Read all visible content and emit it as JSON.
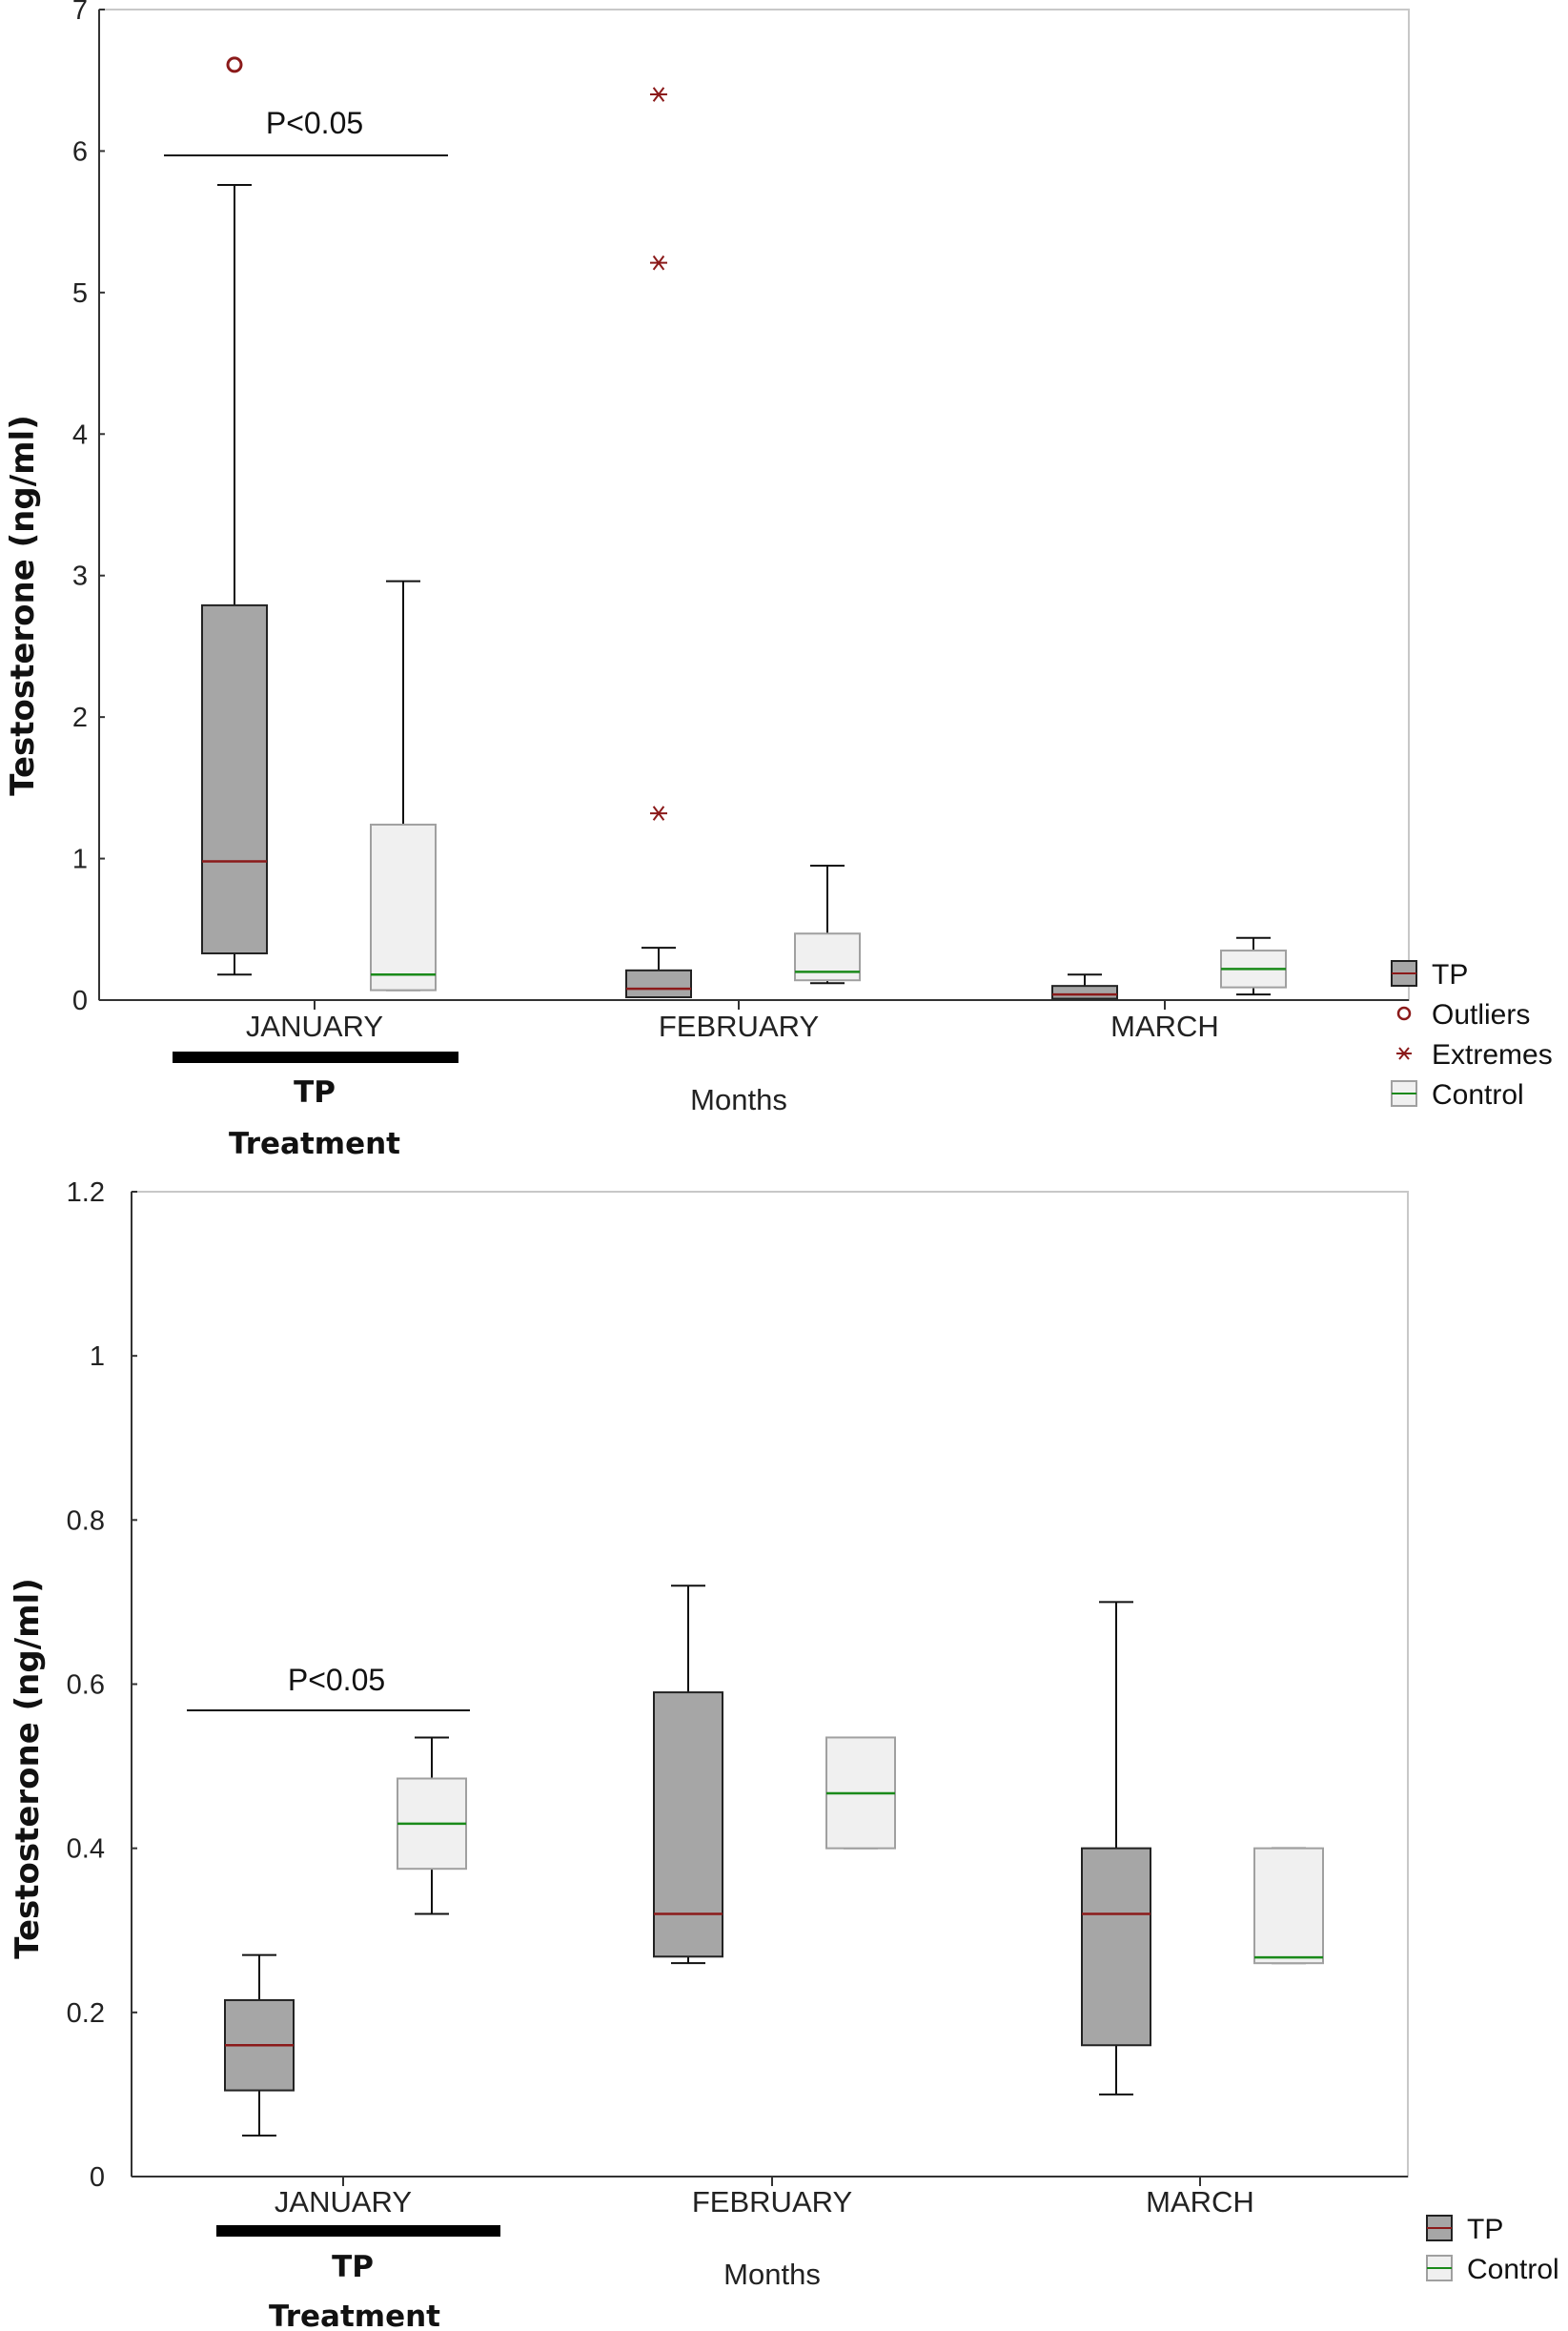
{
  "colors": {
    "tp_fill": "#a6a6a6",
    "control_fill": "#f0f0f0",
    "control_stroke": "#a0a0a0",
    "tp_median": "#8b1a1a",
    "control_median": "#1a8a1a",
    "outlier": "#8b1a1a"
  },
  "legend": {
    "tp": "TP",
    "outliers": "Outliers",
    "extremes": "Extremes",
    "control": "Control"
  },
  "chart_data": [
    {
      "type": "box",
      "ylabel": "Testosterone (ng/ml)",
      "xlabel": "Months",
      "ylim": [
        0,
        7
      ],
      "yticks": [
        "0",
        "1",
        "2",
        "3",
        "4",
        "5",
        "6",
        "7"
      ],
      "categories": [
        "JANUARY",
        "FEBRUARY",
        "MARCH"
      ],
      "treatment_label": "TP",
      "treatment_sublabel": "Treatment",
      "significance": "P<0.05",
      "series": [
        {
          "name": "TP",
          "boxes": [
            {
              "min": 0.18,
              "q1": 0.33,
              "median": 0.98,
              "q3": 2.79,
              "max": 5.76
            },
            {
              "min": 0.02,
              "q1": 0.02,
              "median": 0.08,
              "q3": 0.21,
              "max": 0.37
            },
            {
              "min": 0.01,
              "q1": 0.01,
              "median": 0.04,
              "q3": 0.1,
              "max": 0.18
            }
          ],
          "outliers": [
            [
              0,
              6.61
            ]
          ],
          "extremes": [
            [
              1,
              6.4
            ],
            [
              1,
              5.21
            ],
            [
              1,
              1.32
            ]
          ]
        },
        {
          "name": "Control",
          "boxes": [
            {
              "min": 0.07,
              "q1": 0.07,
              "median": 0.18,
              "q3": 1.24,
              "max": 2.96
            },
            {
              "min": 0.12,
              "q1": 0.14,
              "median": 0.2,
              "q3": 0.47,
              "max": 0.95
            },
            {
              "min": 0.04,
              "q1": 0.09,
              "median": 0.22,
              "q3": 0.35,
              "max": 0.44
            }
          ],
          "outliers": [],
          "extremes": []
        }
      ]
    },
    {
      "type": "box",
      "ylabel": "Testosterone (ng/ml)",
      "xlabel": "Months",
      "ylim": [
        0,
        1.2
      ],
      "yticks": [
        "0",
        "0.2",
        "0.4",
        "0.6",
        "0.8",
        "1",
        "1.2"
      ],
      "categories": [
        "JANUARY",
        "FEBRUARY",
        "MARCH"
      ],
      "treatment_label": "TP",
      "treatment_sublabel": "Treatment",
      "significance": "P<0.05",
      "series": [
        {
          "name": "TP",
          "boxes": [
            {
              "min": 0.05,
              "q1": 0.105,
              "median": 0.16,
              "q3": 0.215,
              "max": 0.27
            },
            {
              "min": 0.26,
              "q1": 0.268,
              "median": 0.32,
              "q3": 0.59,
              "max": 0.72
            },
            {
              "min": 0.1,
              "q1": 0.16,
              "median": 0.32,
              "q3": 0.4,
              "max": 0.7
            }
          ],
          "outliers": [],
          "extremes": []
        },
        {
          "name": "Control",
          "boxes": [
            {
              "min": 0.32,
              "q1": 0.375,
              "median": 0.43,
              "q3": 0.485,
              "max": 0.535
            },
            {
              "min": 0.4,
              "q1": 0.4,
              "median": 0.467,
              "q3": 0.535,
              "max": 0.535
            },
            {
              "min": 0.26,
              "q1": 0.26,
              "median": 0.267,
              "q3": 0.4,
              "max": 0.4
            }
          ],
          "outliers": [],
          "extremes": []
        }
      ]
    }
  ]
}
